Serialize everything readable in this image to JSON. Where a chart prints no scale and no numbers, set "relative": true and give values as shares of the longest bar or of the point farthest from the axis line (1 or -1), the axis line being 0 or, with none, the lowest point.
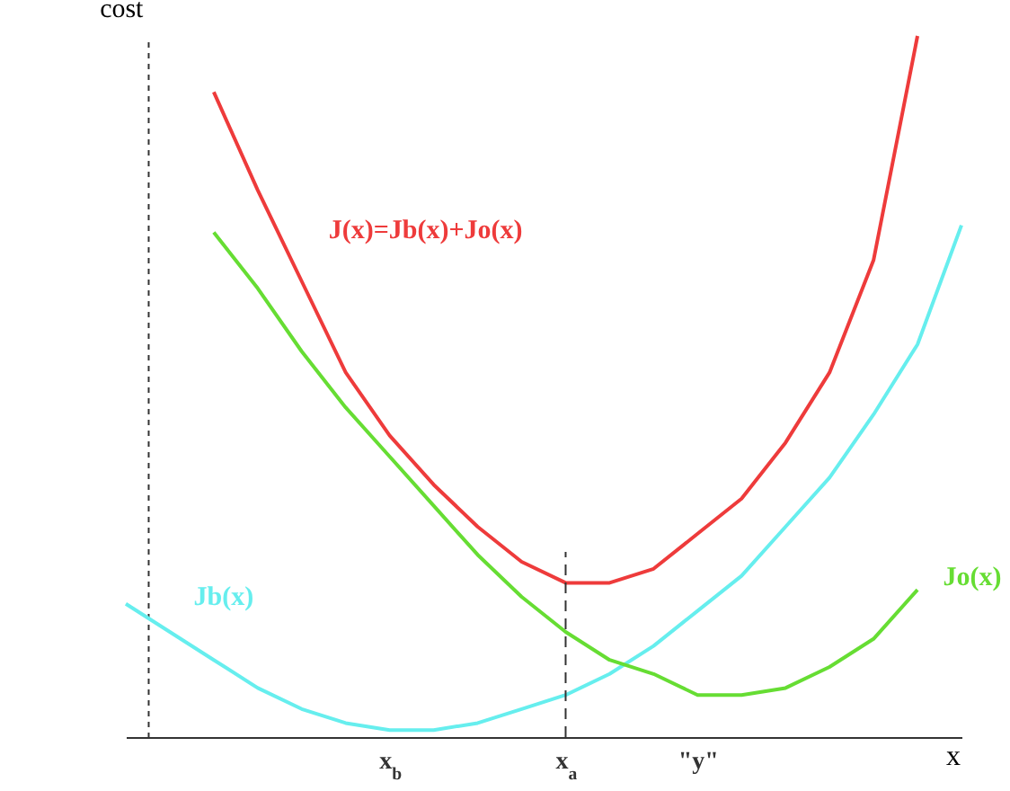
{
  "chart_data": {
    "type": "line",
    "relative": true,
    "xlabel": "x",
    "ylabel": "cost",
    "categories": [
      null,
      null,
      null,
      null,
      null,
      null,
      "x$_{b}$",
      null,
      null,
      null,
      "x$_{a}$",
      null,
      null,
      "\"y\"",
      null,
      null,
      null,
      null,
      null,
      null
    ],
    "series": [
      {
        "name": "J(x)=Jb(x)+Jo(x)",
        "color": "#ee3b3b",
        "values": [
          null,
          null,
          0.92,
          0.78,
          0.65,
          0.52,
          0.43,
          0.36,
          0.3,
          0.25,
          0.22,
          0.22,
          0.24,
          0.29,
          0.34,
          0.42,
          0.52,
          0.68,
          1.0,
          null
        ]
      },
      {
        "name": "Jb(x)",
        "color": "#66eeee",
        "values": [
          0.19,
          0.15,
          0.11,
          0.07,
          0.04,
          0.02,
          0.01,
          0.01,
          0.02,
          0.04,
          0.06,
          0.09,
          0.13,
          0.18,
          0.23,
          0.3,
          0.37,
          0.46,
          0.56,
          0.73
        ]
      },
      {
        "name": "Jo(x)",
        "color": "#66dd33",
        "values": [
          null,
          null,
          0.72,
          0.64,
          0.55,
          0.47,
          0.4,
          0.33,
          0.26,
          0.2,
          0.15,
          0.11,
          0.09,
          0.06,
          0.06,
          0.07,
          0.1,
          0.14,
          0.21,
          null
        ]
      }
    ],
    "ref_lines": [
      {
        "axis": "x",
        "value": "x$_{a}$",
        "line_style": "dashed",
        "color": "#333333"
      }
    ],
    "grid": false,
    "legend": false,
    "marker": "none",
    "line_style": "solid"
  }
}
